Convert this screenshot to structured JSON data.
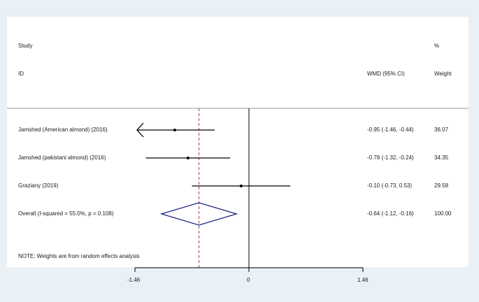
{
  "chart_data": {
    "type": "forest",
    "header": {
      "study_label": "Study",
      "id_label": "ID",
      "effect_label": "WMD (95% CI)",
      "pct_label": "%",
      "weight_label": "Weight"
    },
    "studies": [
      {
        "label": "Jamshed (American almond) (2016)",
        "estimate": -0.95,
        "lower": -1.46,
        "upper": -0.44,
        "ci_text": "-0.95 (-1.46, -0.44)",
        "weight": "36.07"
      },
      {
        "label": "Jamshed (pakistani almond) (2016)",
        "estimate": -0.78,
        "lower": -1.32,
        "upper": -0.24,
        "ci_text": "-0.78 (-1.32, -0.24)",
        "weight": "34.35"
      },
      {
        "label": "Graziany (2019)",
        "estimate": -0.1,
        "lower": -0.73,
        "upper": 0.53,
        "ci_text": "-0.10 (-0.73, 0.53)",
        "weight": "29.58"
      }
    ],
    "overall": {
      "label": "Overall  (I-squared = 55.0%, p = 0.108)",
      "estimate": -0.64,
      "lower": -1.12,
      "upper": -0.16,
      "ci_text": "-0.64 (-1.12, -0.16)",
      "weight": "100.00"
    },
    "note": "NOTE: Weights are from random effects analysis",
    "xlim": [
      -1.46,
      1.46
    ],
    "xticks": [
      {
        "value": -1.46,
        "label": "-1.46"
      },
      {
        "value": 0,
        "label": "0"
      },
      {
        "value": 1.46,
        "label": "1.46"
      }
    ],
    "colors": {
      "diamond": "#1a237e",
      "overall_line": "#b03a48",
      "lines": "#000000",
      "background": "#e9f0f6"
    }
  }
}
